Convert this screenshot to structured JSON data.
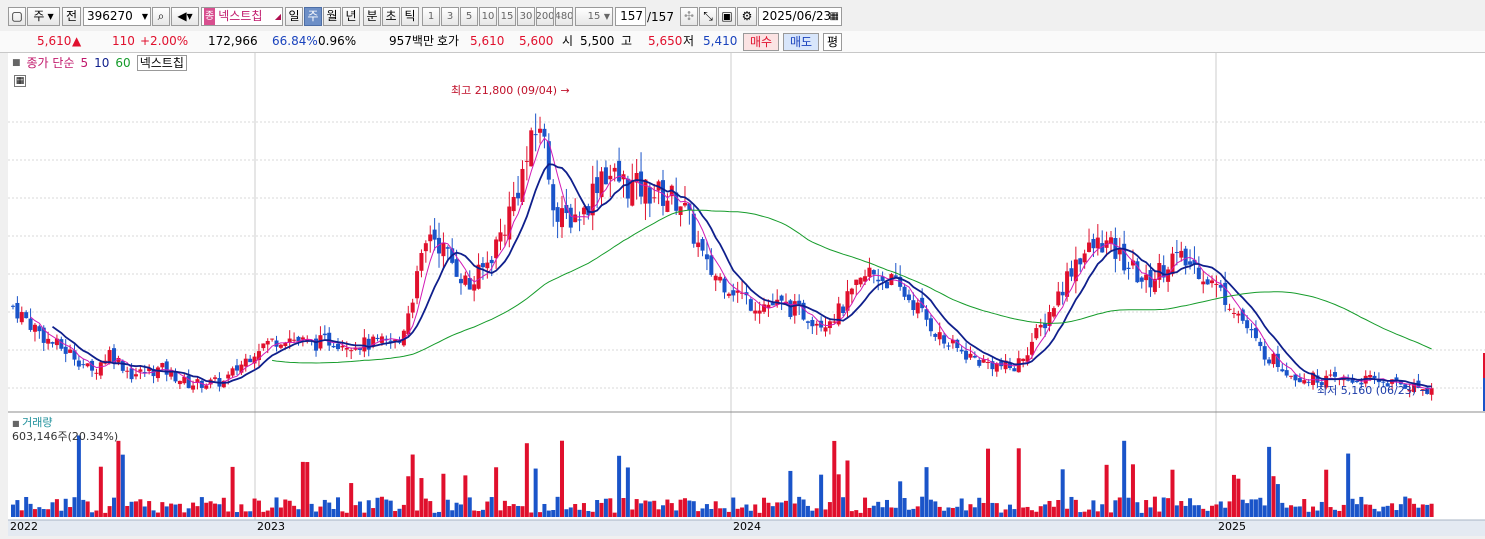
{
  "toolbar": {
    "market_select": "주",
    "prev_label": "전",
    "code_value": "396270",
    "stock_name": "넥스트칩",
    "period_day": "일",
    "period_week": "주",
    "period_month": "월",
    "period_year": "년",
    "period_minute": "분",
    "period_second": "초",
    "period_tick": "틱",
    "intervals": [
      "1",
      "3",
      "5",
      "10",
      "15",
      "30",
      "200",
      "480"
    ],
    "count_value": "15",
    "position": "157",
    "position_total": "/157",
    "date_value": "2025/06/23"
  },
  "info": {
    "price": "5,610",
    "arrow": "▲",
    "change": "110",
    "change_pct": "+2.00%",
    "volume": "172,966",
    "ratio1": "66.84%",
    "ratio2": "0.96%",
    "amount": "957백만",
    "quote_label": "호가",
    "ask": "5,610",
    "bid": "5,600",
    "open_label": "시",
    "open": "5,500",
    "high_label": "고",
    "high": "5,650",
    "low_label": "저",
    "low": "5,410",
    "buy_label": "매수",
    "sell_label": "매도",
    "avg_label": "평"
  },
  "legend": {
    "title": "종가 단순",
    "ma5": "5",
    "ma10": "10",
    "ma60": "60",
    "name": "넥스트칩"
  },
  "colors": {
    "up": "#e0102d",
    "down": "#1a54c9",
    "ma5": "#d21bb6",
    "ma10": "#0f1f8c",
    "ma60": "#169c2b"
  },
  "annotations": {
    "high": "최고 21,800 (09/04)",
    "low": "최저 5,160 (06/23)"
  },
  "volume_panel": {
    "title": "거래량",
    "value": "603,146주(20.34%)"
  },
  "x_labels": [
    "2022",
    "2023",
    "2024",
    "2025"
  ],
  "chart_data": {
    "type": "candlestick",
    "period": "weekly",
    "high": {
      "value": 21800,
      "date": "09/04"
    },
    "low": {
      "value": 5160,
      "date": "06/23"
    },
    "last": {
      "close": 5610,
      "open": 5500,
      "high": 5650,
      "low": 5410
    },
    "ma_periods": [
      5,
      10,
      60
    ],
    "volume_last": 603146
  }
}
